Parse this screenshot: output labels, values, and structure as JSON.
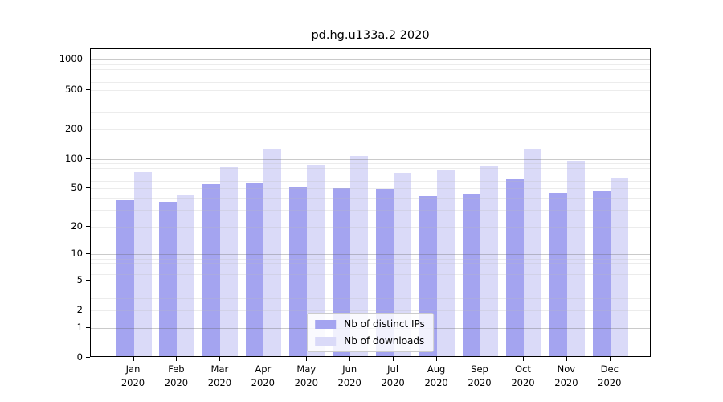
{
  "title": "pd.hg.u133a.2 2020",
  "chart_data": {
    "type": "bar",
    "title": "pd.hg.u133a.2 2020",
    "categories": [
      "Jan",
      "Feb",
      "Mar",
      "Apr",
      "May",
      "Jun",
      "Jul",
      "Aug",
      "Sep",
      "Oct",
      "Nov",
      "Dec"
    ],
    "year": "2020",
    "series": [
      {
        "name": "Nb of distinct IPs",
        "color": "#a4a4f0",
        "values": [
          36,
          35,
          53,
          55,
          50,
          48,
          47,
          40,
          42,
          60,
          43,
          45
        ]
      },
      {
        "name": "Nb of downloads",
        "color": "#dadaf8",
        "values": [
          70,
          41,
          79,
          122,
          83,
          102,
          69,
          73,
          81,
          122,
          92,
          61
        ]
      }
    ],
    "xlabel": "",
    "ylabel": "",
    "y_axis": {
      "scale": "log1p",
      "ticks": [
        0,
        1,
        2,
        5,
        10,
        20,
        50,
        100,
        200,
        500,
        1000
      ],
      "tick_labels": [
        "0",
        "1",
        "2",
        "5",
        "10",
        "20",
        "50",
        "100",
        "200",
        "500",
        "1000"
      ],
      "top": 1285
    },
    "grid": {
      "major_at": [
        1,
        10,
        100,
        1000
      ],
      "grid_on": true
    },
    "legend": {
      "position": "lower center"
    }
  },
  "colors": {
    "distinct_ips_bar": "#a4a4f0",
    "downloads_bar": "#dadaf8",
    "plot_border": "#000000",
    "legend_border": "#cccccc"
  }
}
